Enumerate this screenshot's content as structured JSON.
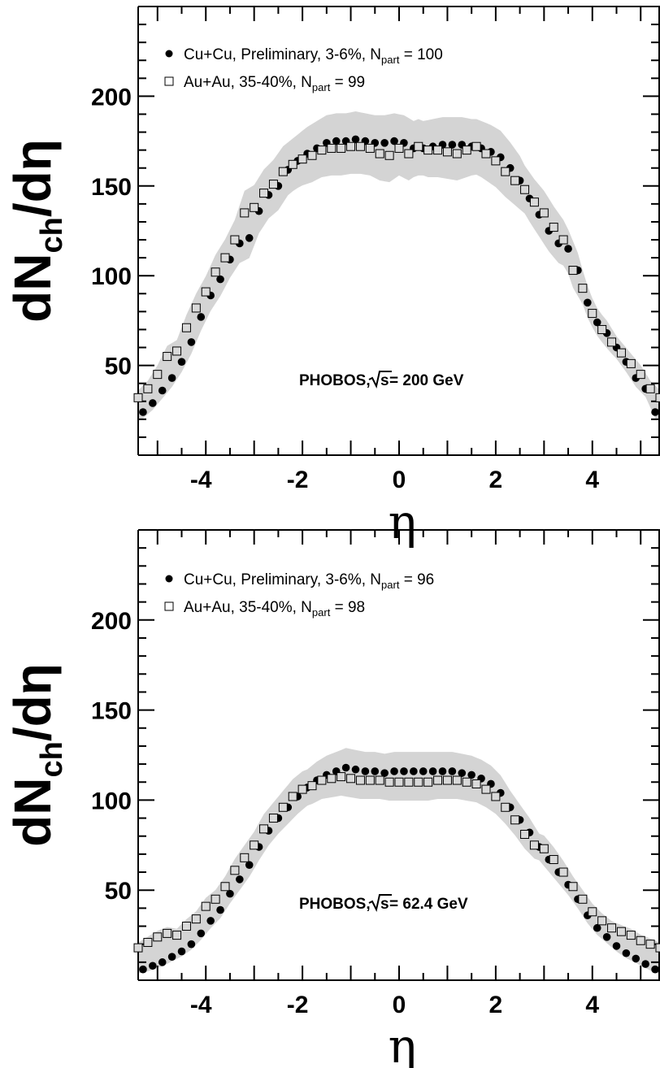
{
  "colors": {
    "band": "#d4d4d4",
    "cu_marker": "#000000",
    "au_marker_fill": "#d9d9d9",
    "au_marker_edge": "#000000",
    "axis": "#000000"
  },
  "icons": {
    "cu_series": "filled-circle-marker",
    "au_series": "open-square-marker"
  },
  "chart_data": [
    {
      "type": "scatter",
      "title": "",
      "ylabel": {
        "main": "dN",
        "sub": "ch",
        "tail": "/dη"
      },
      "xlabel": "η",
      "xlim": [
        -5.4,
        5.4
      ],
      "ylim": [
        0,
        250
      ],
      "xticks": [
        "-4",
        "-2",
        "0",
        "2",
        "4"
      ],
      "yticks": [
        "50",
        "100",
        "150",
        "200"
      ],
      "grid": false,
      "legend_position": "top-left",
      "annotation": {
        "prefix": "PHOBOS,",
        "sqrt": "s",
        "suffix": " = 200 GeV"
      },
      "series": [
        {
          "name_main": "Cu+Cu, Preliminary, 3-6%, N",
          "name_sub": "part",
          "name_tail": " = 100",
          "marker": "circle",
          "x": [
            -5.3,
            -5.1,
            -4.9,
            -4.7,
            -4.5,
            -4.3,
            -4.1,
            -3.9,
            -3.7,
            -3.5,
            -3.3,
            -3.1,
            -2.9,
            -2.7,
            -2.5,
            -2.3,
            -2.1,
            -1.9,
            -1.7,
            -1.5,
            -1.3,
            -1.1,
            -0.9,
            -0.7,
            -0.5,
            -0.3,
            -0.1,
            0.1,
            0.3,
            0.5,
            0.7,
            0.9,
            1.1,
            1.3,
            1.5,
            1.7,
            1.9,
            2.1,
            2.3,
            2.5,
            2.7,
            2.9,
            3.1,
            3.3,
            3.5,
            3.7,
            3.9,
            4.1,
            4.3,
            4.5,
            4.7,
            4.9,
            5.1,
            5.3
          ],
          "y": [
            24,
            29,
            36,
            43,
            52,
            63,
            77,
            89,
            98,
            109,
            118,
            121,
            136,
            145,
            150,
            159,
            164,
            168,
            171,
            174,
            175,
            175,
            176,
            175,
            174,
            174,
            175,
            174,
            171,
            171,
            172,
            173,
            173,
            173,
            172,
            171,
            169,
            166,
            160,
            153,
            143,
            134,
            125,
            118,
            115,
            103,
            85,
            74,
            68,
            60,
            52,
            43,
            37,
            24
          ]
        },
        {
          "name_main": "Au+Au, 35-40%, N",
          "name_sub": "part",
          "name_tail": " = 99",
          "marker": "square",
          "x": [
            -5.4,
            -5.2,
            -5.0,
            -4.8,
            -4.6,
            -4.4,
            -4.2,
            -4.0,
            -3.8,
            -3.6,
            -3.4,
            -3.2,
            -3.0,
            -2.8,
            -2.6,
            -2.4,
            -2.2,
            -2.0,
            -1.8,
            -1.6,
            -1.4,
            -1.2,
            -1.0,
            -0.8,
            -0.6,
            -0.4,
            -0.2,
            0.0,
            0.2,
            0.4,
            0.6,
            0.8,
            1.0,
            1.2,
            1.4,
            1.6,
            1.8,
            2.0,
            2.2,
            2.4,
            2.6,
            2.8,
            3.0,
            3.2,
            3.4,
            3.6,
            3.8,
            4.0,
            4.2,
            4.4,
            4.6,
            4.8,
            5.0,
            5.2,
            5.4
          ],
          "y": [
            32,
            37,
            45,
            55,
            58,
            71,
            82,
            91,
            102,
            110,
            120,
            135,
            138,
            146,
            151,
            158,
            162,
            165,
            167,
            170,
            171,
            171,
            172,
            172,
            171,
            168,
            167,
            171,
            168,
            172,
            170,
            170,
            169,
            168,
            170,
            172,
            168,
            164,
            158,
            153,
            148,
            141,
            135,
            127,
            120,
            103,
            93,
            79,
            70,
            63,
            57,
            51,
            45,
            37,
            32
          ]
        }
      ]
    },
    {
      "type": "scatter",
      "title": "",
      "ylabel": {
        "main": "dN",
        "sub": "ch",
        "tail": "/dη"
      },
      "xlabel": "η",
      "xlim": [
        -5.4,
        5.4
      ],
      "ylim": [
        0,
        250
      ],
      "xticks": [
        "-4",
        "-2",
        "0",
        "2",
        "4"
      ],
      "yticks": [
        "50",
        "100",
        "150",
        "200"
      ],
      "grid": false,
      "legend_position": "top-left",
      "annotation": {
        "prefix": "PHOBOS,",
        "sqrt": "s",
        "suffix": " = 62.4 GeV"
      },
      "series": [
        {
          "name_main": "Cu+Cu, Preliminary, 3-6%, N",
          "name_sub": "part",
          "name_tail": " = 96",
          "marker": "circle",
          "x": [
            -5.3,
            -5.1,
            -4.9,
            -4.7,
            -4.5,
            -4.3,
            -4.1,
            -3.9,
            -3.7,
            -3.5,
            -3.3,
            -3.1,
            -2.9,
            -2.7,
            -2.5,
            -2.3,
            -2.1,
            -1.9,
            -1.7,
            -1.5,
            -1.3,
            -1.1,
            -0.9,
            -0.7,
            -0.5,
            -0.3,
            -0.1,
            0.1,
            0.3,
            0.5,
            0.7,
            0.9,
            1.1,
            1.3,
            1.5,
            1.7,
            1.9,
            2.1,
            2.3,
            2.5,
            2.7,
            2.9,
            3.1,
            3.3,
            3.5,
            3.7,
            3.9,
            4.1,
            4.3,
            4.5,
            4.7,
            4.9,
            5.1,
            5.3
          ],
          "y": [
            6,
            8,
            10,
            13,
            16,
            20,
            26,
            33,
            39,
            48,
            56,
            64,
            74,
            83,
            90,
            96,
            102,
            107,
            111,
            114,
            116,
            118,
            117,
            116,
            116,
            115,
            116,
            116,
            116,
            116,
            116,
            116,
            116,
            115,
            114,
            112,
            109,
            104,
            96,
            89,
            82,
            74,
            67,
            60,
            53,
            45,
            36,
            29,
            24,
            19,
            15,
            12,
            9,
            6
          ]
        },
        {
          "name_main": "Au+Au, 35-40%, N",
          "name_sub": "part",
          "name_tail": " = 98",
          "marker": "square",
          "x": [
            -5.4,
            -5.2,
            -5.0,
            -4.8,
            -4.6,
            -4.4,
            -4.2,
            -4.0,
            -3.8,
            -3.6,
            -3.4,
            -3.2,
            -3.0,
            -2.8,
            -2.6,
            -2.4,
            -2.2,
            -2.0,
            -1.8,
            -1.6,
            -1.4,
            -1.2,
            -1.0,
            -0.8,
            -0.6,
            -0.4,
            -0.2,
            0.0,
            0.2,
            0.4,
            0.6,
            0.8,
            1.0,
            1.2,
            1.4,
            1.6,
            1.8,
            2.0,
            2.2,
            2.4,
            2.6,
            2.8,
            3.0,
            3.2,
            3.4,
            3.6,
            3.8,
            4.0,
            4.2,
            4.4,
            4.6,
            4.8,
            5.0,
            5.2,
            5.4
          ],
          "y": [
            18,
            21,
            24,
            26,
            25,
            30,
            34,
            41,
            45,
            52,
            61,
            68,
            75,
            84,
            90,
            96,
            102,
            106,
            108,
            111,
            112,
            113,
            112,
            111,
            111,
            111,
            110,
            110,
            110,
            110,
            110,
            111,
            111,
            111,
            110,
            109,
            106,
            102,
            96,
            89,
            81,
            75,
            73,
            67,
            60,
            52,
            45,
            38,
            33,
            29,
            27,
            25,
            22,
            20,
            18
          ]
        }
      ]
    }
  ]
}
